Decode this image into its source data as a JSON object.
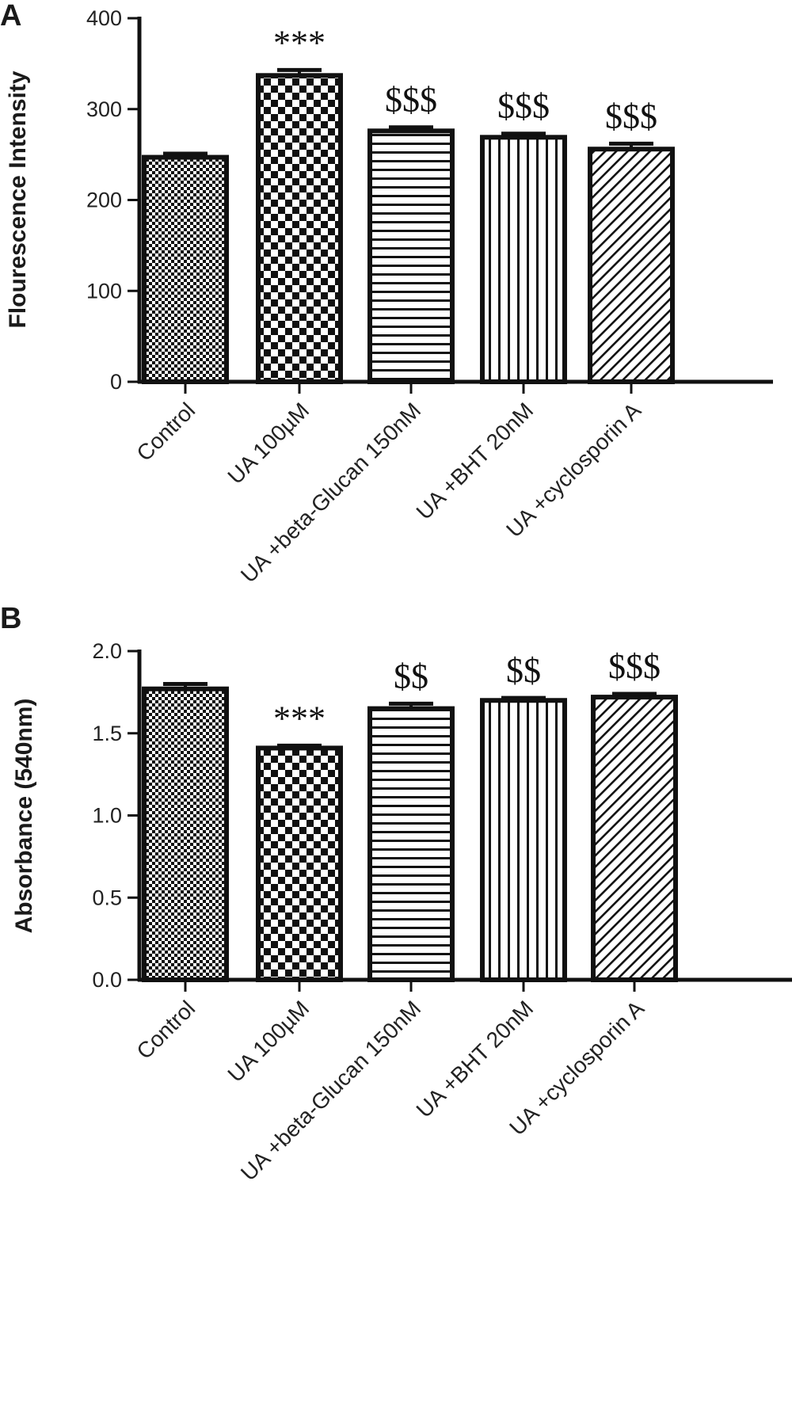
{
  "chart_data": [
    {
      "panel": "A",
      "type": "bar",
      "ylabel": "Flourescence Intensity",
      "xlabel": "",
      "ylim": [
        0,
        400
      ],
      "yticks": [
        "0",
        "100",
        "200",
        "300",
        "400"
      ],
      "categories": [
        "Control",
        "UA 100µM",
        "UA +beta-Glucan 150nM",
        "UA +BHT 20nM",
        "UA +cyclosporin A"
      ],
      "values": [
        247,
        337,
        276,
        269,
        256
      ],
      "errors": [
        4,
        6,
        4,
        4,
        6
      ],
      "annotations": [
        "",
        "***",
        "$$$",
        "$$$",
        "$$$"
      ],
      "patterns": [
        "fine-check",
        "large-check",
        "horizontal-lines",
        "vertical-lines",
        "diagonal-lines"
      ],
      "bar_color": "#111111",
      "grid": false
    },
    {
      "panel": "B",
      "type": "bar",
      "ylabel": "Absorbance (540nm)",
      "xlabel": "",
      "ylim": [
        0,
        2.0
      ],
      "yticks": [
        "0.0",
        "0.5",
        "1.0",
        "1.5",
        "2.0"
      ],
      "categories": [
        "Control",
        "UA 100µM",
        "UA +beta-Glucan 150nM",
        "UA +BHT 20nM",
        "UA +cyclosporin A"
      ],
      "values": [
        1.77,
        1.41,
        1.65,
        1.7,
        1.72
      ],
      "errors": [
        0.03,
        0.015,
        0.03,
        0.015,
        0.02
      ],
      "annotations": [
        "",
        "***",
        "$$",
        "$$",
        "$$$"
      ],
      "patterns": [
        "fine-check",
        "large-check",
        "horizontal-lines",
        "vertical-lines",
        "diagonal-lines"
      ],
      "bar_color": "#111111",
      "grid": false
    }
  ]
}
